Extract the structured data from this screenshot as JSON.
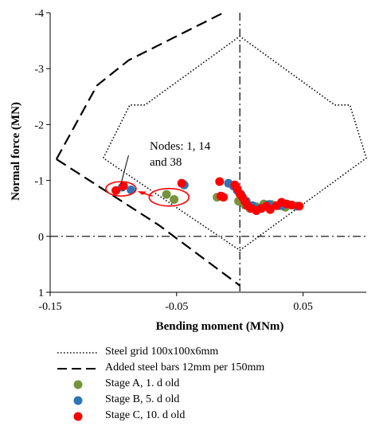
{
  "chart_data": {
    "type": "scatter",
    "xlabel": "Bending moment (MNm)",
    "ylabel": "Normal force (MN)",
    "xlim": [
      -0.15,
      0.1
    ],
    "ylim": [
      -4,
      1
    ],
    "y_inverted": true,
    "x_ticks": [
      -0.15,
      -0.05,
      0.05
    ],
    "x_tick_labels": [
      "-0.15",
      "-0.05",
      "0.05"
    ],
    "y_ticks": [
      -4,
      -3,
      -2,
      -1,
      0,
      1
    ],
    "y_tick_labels": [
      "-4",
      "-3",
      "-2",
      "-1",
      "0",
      "1"
    ],
    "lines": [
      {
        "name": "Steel grid 100x100x6mm",
        "style": "dotted",
        "color": "#000000",
        "points": [
          [
            -0.108,
            -1.4
          ],
          [
            -0.087,
            -2.35
          ],
          [
            -0.075,
            -2.35
          ],
          [
            0.0,
            -3.58
          ],
          [
            0.075,
            -2.35
          ],
          [
            0.087,
            -2.35
          ],
          [
            0.1,
            -1.4
          ],
          [
            0.0,
            0.25
          ],
          [
            -0.108,
            -1.4
          ]
        ]
      },
      {
        "name": "Added steel bars 12mm per 150mm",
        "style": "dashed",
        "color": "#000000",
        "points": [
          [
            -0.145,
            -1.38
          ],
          [
            -0.113,
            -2.7
          ],
          [
            -0.088,
            -3.15
          ],
          [
            -0.013,
            -4.0
          ]
        ],
        "points2": [
          [
            -0.145,
            -1.38
          ],
          [
            -0.064,
            -0.2
          ],
          [
            0.0,
            0.88
          ]
        ]
      },
      {
        "name": "reference axes",
        "style": "dashdot",
        "color": "#000000",
        "segments": [
          [
            [
              -0.15,
              0
            ],
            [
              0.1,
              0
            ]
          ],
          [
            [
              0,
              -4
            ],
            [
              0,
              1
            ]
          ]
        ]
      }
    ],
    "series": [
      {
        "name": "Stage A, 1. d old",
        "color": "#76933c",
        "points": [
          [
            -0.058,
            -0.75
          ],
          [
            -0.052,
            -0.66
          ],
          [
            -0.018,
            -0.7
          ],
          [
            -0.001,
            -0.63
          ],
          [
            0.004,
            -0.56
          ],
          [
            0.008,
            -0.5
          ],
          [
            0.013,
            -0.53
          ],
          [
            0.019,
            -0.58
          ],
          [
            0.025,
            -0.57
          ],
          [
            0.031,
            -0.55
          ],
          [
            0.036,
            -0.52
          ]
        ]
      },
      {
        "name": "Stage B, 5. d old",
        "color": "#2e75b6",
        "points": [
          [
            -0.093,
            -0.88
          ],
          [
            -0.086,
            -0.83
          ],
          [
            -0.044,
            -0.92
          ],
          [
            -0.009,
            -0.95
          ],
          [
            -0.005,
            -0.9
          ],
          [
            -0.002,
            -0.82
          ],
          [
            0.001,
            -0.75
          ],
          [
            0.005,
            -0.63
          ],
          [
            0.01,
            -0.55
          ],
          [
            0.016,
            -0.5
          ],
          [
            0.023,
            -0.57
          ],
          [
            0.033,
            -0.55
          ],
          [
            0.045,
            -0.54
          ]
        ]
      },
      {
        "name": "Stage C, 10. d old",
        "color": "#ff0000",
        "points": [
          [
            -0.098,
            -0.82
          ],
          [
            -0.092,
            -0.9
          ],
          [
            -0.046,
            -0.95
          ],
          [
            -0.016,
            -0.98
          ],
          [
            -0.015,
            -0.72
          ],
          [
            -0.013,
            -0.7
          ],
          [
            -0.004,
            -0.92
          ],
          [
            -0.002,
            -0.85
          ],
          [
            0.0,
            -0.76
          ],
          [
            0.002,
            -0.7
          ],
          [
            0.004,
            -0.62
          ],
          [
            0.006,
            -0.55
          ],
          [
            0.009,
            -0.5
          ],
          [
            0.013,
            -0.46
          ],
          [
            0.017,
            -0.5
          ],
          [
            0.021,
            -0.54
          ],
          [
            0.024,
            -0.48
          ],
          [
            0.029,
            -0.55
          ],
          [
            0.033,
            -0.61
          ],
          [
            0.037,
            -0.58
          ],
          [
            0.041,
            -0.56
          ],
          [
            0.047,
            -0.54
          ]
        ]
      }
    ],
    "annotation": {
      "lines": [
        "Nodes: 1, 14",
        "and 38"
      ]
    }
  },
  "legend": [
    {
      "label": "Steel grid 100x100x6mm",
      "kind": "dotted"
    },
    {
      "label": "Added steel bars 12mm per 150mm",
      "kind": "dashed"
    },
    {
      "label": "Stage A, 1. d old",
      "kind": "marker",
      "color": "#76933c"
    },
    {
      "label": "Stage B, 5. d old",
      "kind": "marker",
      "color": "#2e75b6"
    },
    {
      "label": "Stage C, 10. d old",
      "kind": "marker",
      "color": "#ff0000"
    }
  ]
}
